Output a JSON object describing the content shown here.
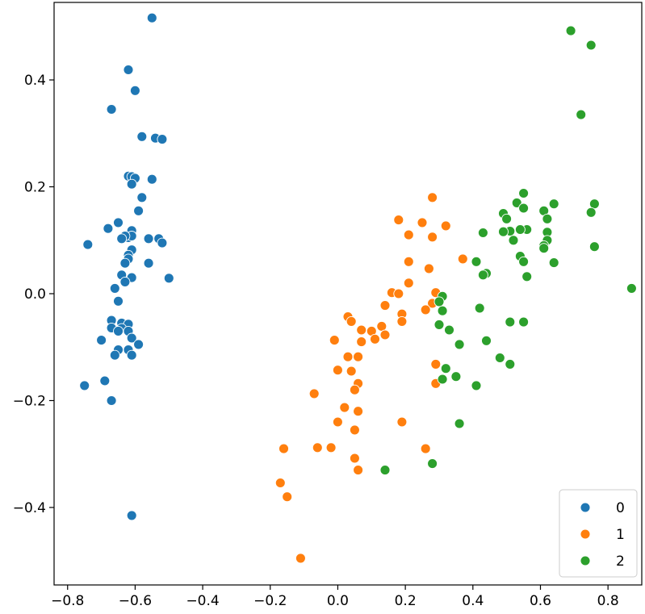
{
  "chart_data": {
    "type": "scatter",
    "title": "",
    "xlabel": "",
    "ylabel": "",
    "xlim": [
      -0.84,
      0.9
    ],
    "ylim": [
      -0.545,
      0.545
    ],
    "xticks": [
      -0.8,
      -0.6,
      -0.4,
      -0.2,
      0.0,
      0.2,
      0.4,
      0.6,
      0.8
    ],
    "yticks": [
      -0.4,
      -0.2,
      0.0,
      0.2,
      0.4
    ],
    "xtick_labels": [
      "−0.8",
      "−0.6",
      "−0.4",
      "−0.2",
      "0.0",
      "0.2",
      "0.4",
      "0.6",
      "0.8"
    ],
    "ytick_labels": [
      "−0.4",
      "−0.2",
      "0.0",
      "0.2",
      "0.4"
    ],
    "grid": false,
    "legend_position": "bottom-right",
    "series": [
      {
        "name": "0",
        "color": "#1f77b4",
        "points": [
          [
            -0.55,
            0.516
          ],
          [
            -0.62,
            0.419
          ],
          [
            -0.6,
            0.38
          ],
          [
            -0.67,
            0.345
          ],
          [
            -0.58,
            0.294
          ],
          [
            -0.54,
            0.291
          ],
          [
            -0.52,
            0.289
          ],
          [
            -0.62,
            0.22
          ],
          [
            -0.61,
            0.219
          ],
          [
            -0.6,
            0.216
          ],
          [
            -0.55,
            0.214
          ],
          [
            -0.61,
            0.205
          ],
          [
            -0.58,
            0.18
          ],
          [
            -0.59,
            0.155
          ],
          [
            -0.65,
            0.133
          ],
          [
            -0.68,
            0.122
          ],
          [
            -0.61,
            0.118
          ],
          [
            -0.62,
            0.105
          ],
          [
            -0.61,
            0.108
          ],
          [
            -0.63,
            0.108
          ],
          [
            -0.64,
            0.103
          ],
          [
            -0.56,
            0.103
          ],
          [
            -0.53,
            0.103
          ],
          [
            -0.52,
            0.095
          ],
          [
            -0.74,
            0.092
          ],
          [
            -0.61,
            0.082
          ],
          [
            -0.62,
            0.072
          ],
          [
            -0.62,
            0.065
          ],
          [
            -0.63,
            0.057
          ],
          [
            -0.56,
            0.057
          ],
          [
            -0.64,
            0.035
          ],
          [
            -0.61,
            0.03
          ],
          [
            -0.5,
            0.029
          ],
          [
            -0.63,
            0.022
          ],
          [
            -0.66,
            0.01
          ],
          [
            -0.65,
            -0.014
          ],
          [
            -0.67,
            -0.05
          ],
          [
            -0.64,
            -0.055
          ],
          [
            -0.62,
            -0.057
          ],
          [
            -0.67,
            -0.064
          ],
          [
            -0.64,
            -0.065
          ],
          [
            -0.65,
            -0.07
          ],
          [
            -0.62,
            -0.07
          ],
          [
            -0.61,
            -0.083
          ],
          [
            -0.7,
            -0.087
          ],
          [
            -0.59,
            -0.095
          ],
          [
            -0.62,
            -0.105
          ],
          [
            -0.65,
            -0.105
          ],
          [
            -0.66,
            -0.115
          ],
          [
            -0.61,
            -0.115
          ],
          [
            -0.69,
            -0.163
          ],
          [
            -0.75,
            -0.172
          ],
          [
            -0.67,
            -0.2
          ],
          [
            -0.61,
            -0.415
          ]
        ]
      },
      {
        "name": "1",
        "color": "#ff7f0e",
        "points": [
          [
            0.28,
            0.18
          ],
          [
            0.18,
            0.138
          ],
          [
            0.25,
            0.133
          ],
          [
            0.32,
            0.127
          ],
          [
            0.21,
            0.11
          ],
          [
            0.28,
            0.106
          ],
          [
            0.37,
            0.065
          ],
          [
            0.21,
            0.06
          ],
          [
            0.27,
            0.047
          ],
          [
            0.21,
            0.02
          ],
          [
            0.16,
            0.002
          ],
          [
            0.18,
            0.0
          ],
          [
            0.29,
            0.002
          ],
          [
            0.14,
            -0.022
          ],
          [
            0.28,
            -0.018
          ],
          [
            0.26,
            -0.03
          ],
          [
            0.03,
            -0.043
          ],
          [
            0.19,
            -0.038
          ],
          [
            0.19,
            -0.052
          ],
          [
            0.04,
            -0.052
          ],
          [
            0.13,
            -0.061
          ],
          [
            0.1,
            -0.07
          ],
          [
            0.07,
            -0.068
          ],
          [
            0.14,
            -0.077
          ],
          [
            0.11,
            -0.085
          ],
          [
            -0.01,
            -0.087
          ],
          [
            0.07,
            -0.09
          ],
          [
            0.06,
            -0.118
          ],
          [
            0.03,
            -0.118
          ],
          [
            0.0,
            -0.143
          ],
          [
            0.04,
            -0.145
          ],
          [
            0.29,
            -0.132
          ],
          [
            0.06,
            -0.168
          ],
          [
            0.05,
            -0.18
          ],
          [
            0.29,
            -0.168
          ],
          [
            -0.07,
            -0.187
          ],
          [
            0.02,
            -0.213
          ],
          [
            0.06,
            -0.22
          ],
          [
            0.0,
            -0.24
          ],
          [
            0.19,
            -0.24
          ],
          [
            0.05,
            -0.255
          ],
          [
            -0.06,
            -0.288
          ],
          [
            -0.02,
            -0.288
          ],
          [
            -0.16,
            -0.29
          ],
          [
            0.26,
            -0.29
          ],
          [
            0.05,
            -0.308
          ],
          [
            0.06,
            -0.33
          ],
          [
            -0.17,
            -0.354
          ],
          [
            -0.15,
            -0.38
          ],
          [
            -0.11,
            -0.495
          ]
        ]
      },
      {
        "name": "2",
        "color": "#2ca02c",
        "points": [
          [
            0.69,
            0.492
          ],
          [
            0.75,
            0.465
          ],
          [
            0.72,
            0.335
          ],
          [
            0.55,
            0.188
          ],
          [
            0.53,
            0.17
          ],
          [
            0.64,
            0.168
          ],
          [
            0.76,
            0.168
          ],
          [
            0.55,
            0.16
          ],
          [
            0.61,
            0.155
          ],
          [
            0.75,
            0.152
          ],
          [
            0.49,
            0.15
          ],
          [
            0.62,
            0.14
          ],
          [
            0.5,
            0.14
          ],
          [
            0.51,
            0.117
          ],
          [
            0.56,
            0.12
          ],
          [
            0.49,
            0.116
          ],
          [
            0.54,
            0.12
          ],
          [
            0.43,
            0.114
          ],
          [
            0.62,
            0.115
          ],
          [
            0.52,
            0.1
          ],
          [
            0.62,
            0.1
          ],
          [
            0.61,
            0.09
          ],
          [
            0.61,
            0.085
          ],
          [
            0.76,
            0.088
          ],
          [
            0.54,
            0.07
          ],
          [
            0.41,
            0.06
          ],
          [
            0.55,
            0.06
          ],
          [
            0.64,
            0.058
          ],
          [
            0.44,
            0.038
          ],
          [
            0.43,
            0.035
          ],
          [
            0.56,
            0.032
          ],
          [
            0.87,
            0.01
          ],
          [
            0.31,
            -0.005
          ],
          [
            0.3,
            -0.015
          ],
          [
            0.31,
            -0.032
          ],
          [
            0.42,
            -0.027
          ],
          [
            0.51,
            -0.053
          ],
          [
            0.55,
            -0.053
          ],
          [
            0.3,
            -0.058
          ],
          [
            0.33,
            -0.068
          ],
          [
            0.44,
            -0.088
          ],
          [
            0.36,
            -0.095
          ],
          [
            0.48,
            -0.12
          ],
          [
            0.51,
            -0.132
          ],
          [
            0.32,
            -0.14
          ],
          [
            0.35,
            -0.155
          ],
          [
            0.31,
            -0.16
          ],
          [
            0.41,
            -0.172
          ],
          [
            0.36,
            -0.243
          ],
          [
            0.28,
            -0.318
          ],
          [
            0.14,
            -0.33
          ]
        ]
      }
    ]
  }
}
